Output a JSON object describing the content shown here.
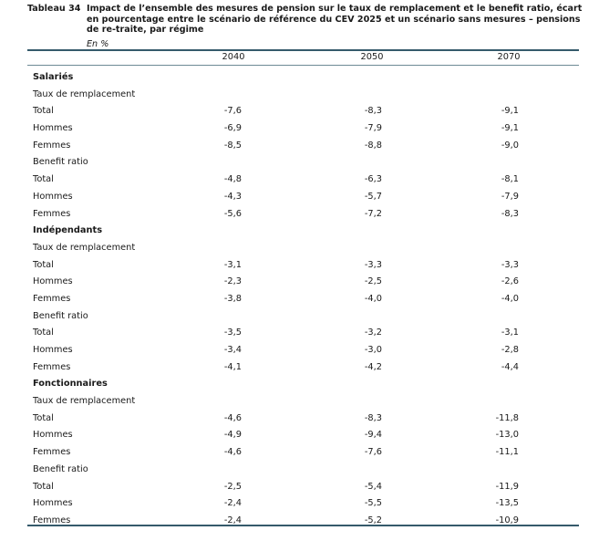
{
  "table": {
    "number_label": "Tableau 34",
    "caption": "Impact de l’ensemble des mesures de pension sur le taux de remplacement et le benefit ratio, écart en pourcentage entre le scénario de référence du CEV 2025 et un scénario sans mesures – pensions de re-traite, par régime",
    "unit": "En %",
    "columns": [
      "2040",
      "2050",
      "2070"
    ],
    "rows": [
      {
        "type": "group",
        "label": "Salariés"
      },
      {
        "type": "subgroup",
        "label": "Taux de remplacement"
      },
      {
        "type": "data",
        "label": "Total",
        "values": [
          "-7,6",
          "-8,3",
          "-9,1"
        ]
      },
      {
        "type": "data",
        "label": "Hommes",
        "values": [
          "-6,9",
          "-7,9",
          "-9,1"
        ]
      },
      {
        "type": "data",
        "label": "Femmes",
        "values": [
          "-8,5",
          "-8,8",
          "-9,0"
        ]
      },
      {
        "type": "subgroup",
        "label": "Benefit ratio"
      },
      {
        "type": "data",
        "label": "Total",
        "values": [
          "-4,8",
          "-6,3",
          "-8,1"
        ]
      },
      {
        "type": "data",
        "label": "Hommes",
        "values": [
          "-4,3",
          "-5,7",
          "-7,9"
        ]
      },
      {
        "type": "data",
        "label": "Femmes",
        "values": [
          "-5,6",
          "-7,2",
          "-8,3"
        ]
      },
      {
        "type": "group",
        "label": "Indépendants"
      },
      {
        "type": "subgroup",
        "label": "Taux de remplacement"
      },
      {
        "type": "data",
        "label": "Total",
        "values": [
          "-3,1",
          "-3,3",
          "-3,3"
        ]
      },
      {
        "type": "data",
        "label": "Hommes",
        "values": [
          "-2,3",
          "-2,5",
          "-2,6"
        ]
      },
      {
        "type": "data",
        "label": "Femmes",
        "values": [
          "-3,8",
          "-4,0",
          "-4,0"
        ]
      },
      {
        "type": "subgroup",
        "label": "Benefit ratio"
      },
      {
        "type": "data",
        "label": "Total",
        "values": [
          "-3,5",
          "-3,2",
          "-3,1"
        ]
      },
      {
        "type": "data",
        "label": "Hommes",
        "values": [
          "-3,4",
          "-3,0",
          "-2,8"
        ]
      },
      {
        "type": "data",
        "label": "Femmes",
        "values": [
          "-4,1",
          "-4,2",
          "-4,4"
        ]
      },
      {
        "type": "group",
        "label": "Fonctionnaires"
      },
      {
        "type": "subgroup",
        "label": "Taux de remplacement"
      },
      {
        "type": "data",
        "label": "Total",
        "values": [
          "-4,6",
          "-8,3",
          "-11,8"
        ]
      },
      {
        "type": "data",
        "label": "Hommes",
        "values": [
          "-4,9",
          "-9,4",
          "-13,0"
        ]
      },
      {
        "type": "data",
        "label": "Femmes",
        "values": [
          "-4,6",
          "-7,6",
          "-11,1"
        ]
      },
      {
        "type": "subgroup",
        "label": "Benefit ratio"
      },
      {
        "type": "data",
        "label": "Total",
        "values": [
          "-2,5",
          "-5,4",
          "-11,9"
        ]
      },
      {
        "type": "data",
        "label": "Hommes",
        "values": [
          "-2,4",
          "-5,5",
          "-13,5"
        ]
      },
      {
        "type": "data",
        "label": "Femmes",
        "values": [
          "-2,4",
          "-5,2",
          "-10,9"
        ]
      }
    ]
  },
  "colors": {
    "rule": "#355a6b",
    "text": "#1a1a1a"
  }
}
